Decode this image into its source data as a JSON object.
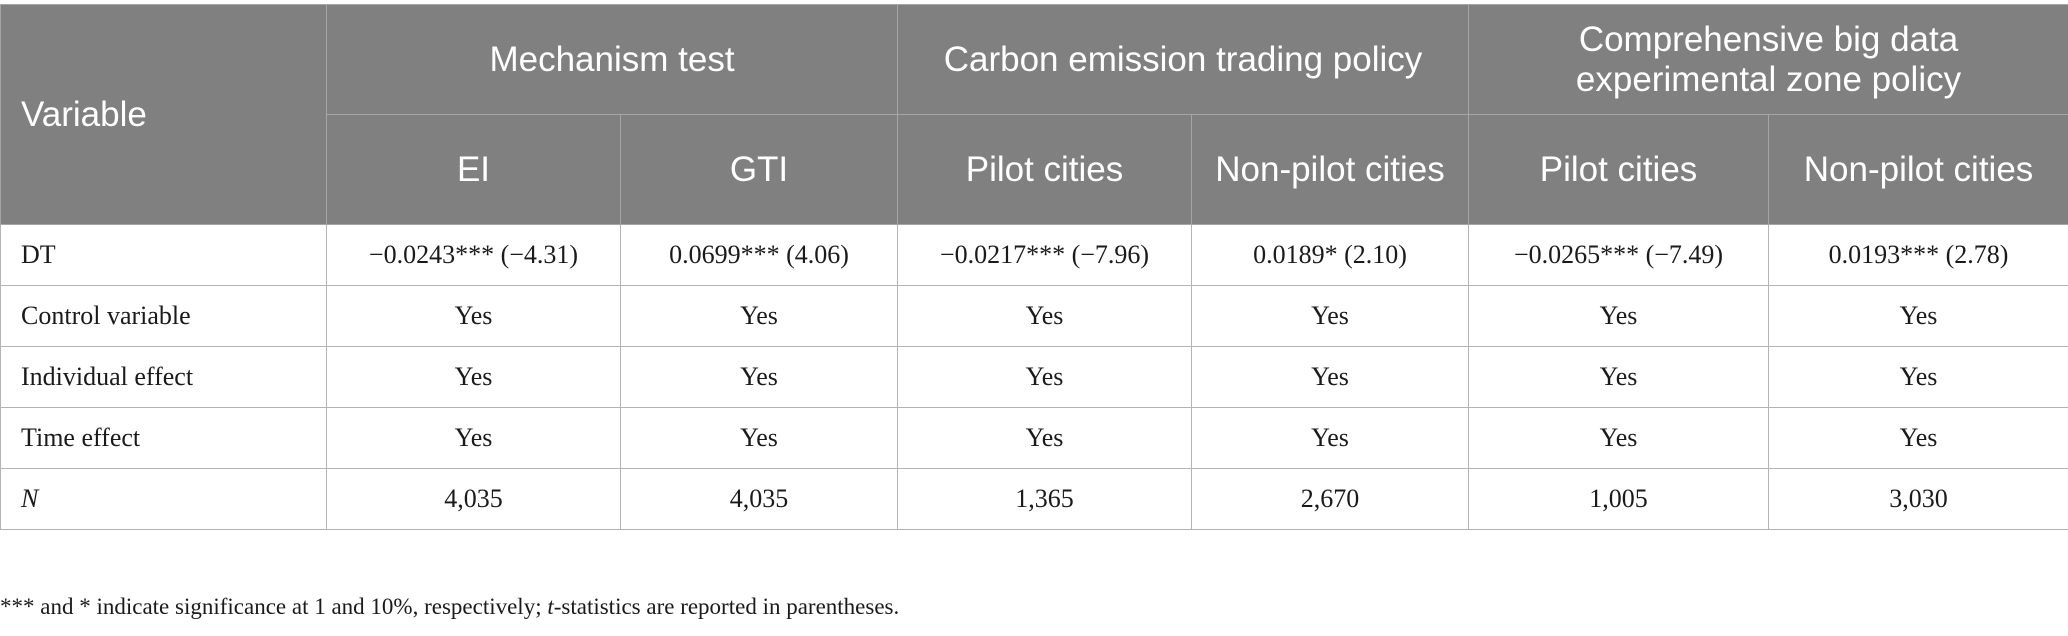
{
  "table": {
    "header": {
      "variable": "Variable",
      "groups": [
        {
          "label": "Mechanism test"
        },
        {
          "label": "Carbon emission trading policy"
        },
        {
          "label": "Comprehensive big data experimental zone policy"
        }
      ],
      "columns": [
        {
          "label": "EI"
        },
        {
          "label": "GTI"
        },
        {
          "label": "Pilot cities"
        },
        {
          "label": "Non-pilot cities"
        },
        {
          "label": "Pilot cities"
        },
        {
          "label": "Non-pilot cities"
        }
      ]
    },
    "rows": [
      {
        "label": "DT",
        "cells": [
          "−0.0243*** (−4.31)",
          "0.0699*** (4.06)",
          "−0.0217*** (−7.96)",
          "0.0189* (2.10)",
          "−0.0265*** (−7.49)",
          "0.0193*** (2.78)"
        ]
      },
      {
        "label": "Control variable",
        "cells": [
          "Yes",
          "Yes",
          "Yes",
          "Yes",
          "Yes",
          "Yes"
        ]
      },
      {
        "label": "Individual effect",
        "cells": [
          "Yes",
          "Yes",
          "Yes",
          "Yes",
          "Yes",
          "Yes"
        ]
      },
      {
        "label": "Time effect",
        "cells": [
          "Yes",
          "Yes",
          "Yes",
          "Yes",
          "Yes",
          "Yes"
        ]
      },
      {
        "label": "N",
        "cells": [
          "4,035",
          "4,035",
          "1,365",
          "2,670",
          "1,005",
          "3,030"
        ]
      }
    ]
  },
  "footnote": {
    "part1": "*** and * indicate significance at 1 and 10%, respectively; ",
    "t": "t",
    "part2": "-statistics are reported in parentheses."
  }
}
